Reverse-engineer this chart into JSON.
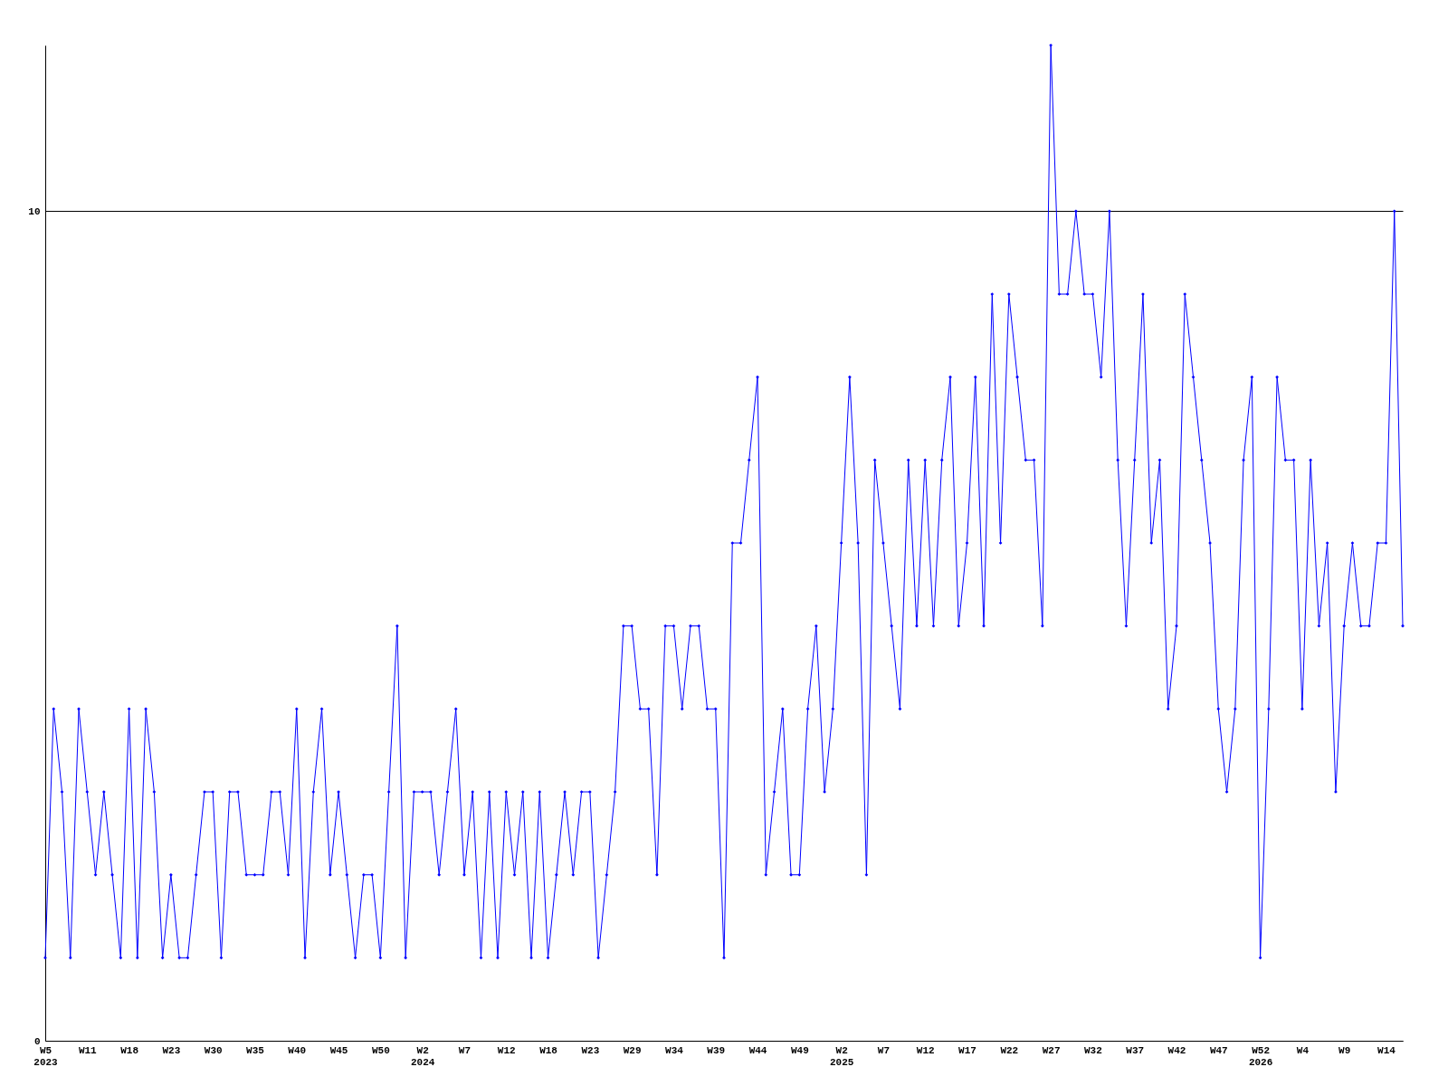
{
  "chart_data": {
    "type": "line",
    "categories": [
      "W5\n2023",
      null,
      null,
      null,
      null,
      "W11",
      null,
      null,
      null,
      null,
      "W18",
      null,
      null,
      null,
      null,
      "W23",
      null,
      null,
      null,
      null,
      "W30",
      null,
      null,
      null,
      null,
      "W35",
      null,
      null,
      null,
      null,
      "W40",
      null,
      null,
      null,
      null,
      "W45",
      null,
      null,
      null,
      null,
      "W50",
      null,
      null,
      null,
      null,
      "W2\n2024",
      null,
      null,
      null,
      null,
      "W7",
      null,
      null,
      null,
      null,
      "W12",
      null,
      null,
      null,
      null,
      "W18",
      null,
      null,
      null,
      null,
      "W23",
      null,
      null,
      null,
      null,
      "W29",
      null,
      null,
      null,
      null,
      "W34",
      null,
      null,
      null,
      null,
      "W39",
      null,
      null,
      null,
      null,
      "W44",
      null,
      null,
      null,
      null,
      "W49",
      null,
      null,
      null,
      null,
      "W2\n2025",
      null,
      null,
      null,
      null,
      "W7",
      null,
      null,
      null,
      null,
      "W12",
      null,
      null,
      null,
      null,
      "W17",
      null,
      null,
      null,
      null,
      "W22",
      null,
      null,
      null,
      null,
      "W27",
      null,
      null,
      null,
      null,
      "W32",
      null,
      null,
      null,
      null,
      "W37",
      null,
      null,
      null,
      null,
      "W42",
      null,
      null,
      null,
      null,
      "W47",
      null,
      null,
      null,
      null,
      "W52\n2026",
      null,
      null,
      null,
      null,
      "W4",
      null,
      null,
      null,
      null,
      "W9",
      null,
      null,
      null,
      null,
      "W14",
      null,
      null
    ],
    "series": [
      {
        "color": "#0000ff",
        "values": [
          1,
          4,
          3,
          1,
          4,
          3,
          2,
          3,
          2,
          1,
          4,
          1,
          4,
          3,
          1,
          2,
          1,
          1,
          2,
          3,
          3,
          1,
          3,
          3,
          2,
          2,
          2,
          3,
          3,
          2,
          4,
          1,
          3,
          4,
          2,
          3,
          2,
          1,
          2,
          2,
          1,
          3,
          5,
          1,
          3,
          3,
          3,
          2,
          3,
          4,
          2,
          3,
          1,
          3,
          1,
          3,
          2,
          3,
          1,
          3,
          1,
          2,
          3,
          2,
          3,
          3,
          1,
          2,
          3,
          5,
          5,
          4,
          4,
          2,
          5,
          5,
          4,
          5,
          5,
          4,
          4,
          1,
          6,
          6,
          7,
          8,
          2,
          3,
          4,
          2,
          2,
          4,
          5,
          3,
          4,
          6,
          8,
          6,
          2,
          7,
          6,
          5,
          4,
          7,
          5,
          7,
          5,
          7,
          8,
          5,
          6,
          8,
          5,
          9,
          6,
          9,
          8,
          7,
          7,
          5,
          12,
          9,
          9,
          10,
          9,
          9,
          8,
          10,
          7,
          5,
          7,
          9,
          6,
          7,
          4,
          5,
          9,
          8,
          7,
          6,
          4,
          3,
          4,
          7,
          8,
          1,
          4,
          8,
          7,
          7,
          4,
          7,
          5,
          6,
          3,
          5,
          6,
          5,
          5,
          6,
          6,
          10,
          5
        ]
      }
    ],
    "ylim": [
      0,
      12
    ],
    "yticks": [
      0,
      10
    ],
    "grid": "y",
    "marker": "diamond",
    "line_style": "solid"
  }
}
